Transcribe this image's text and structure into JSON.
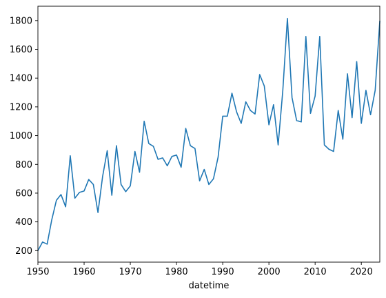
{
  "chart_data": {
    "type": "line",
    "title": "",
    "xlabel": "datetime",
    "ylabel": "",
    "xlim": [
      1950,
      2024
    ],
    "ylim": [
      120,
      1900
    ],
    "xticks": [
      1950,
      1960,
      1970,
      1980,
      1990,
      2000,
      2010,
      2020
    ],
    "yticks": [
      200,
      400,
      600,
      800,
      1000,
      1200,
      1400,
      1600,
      1800
    ],
    "grid": false,
    "legend": "none",
    "series": [
      {
        "color": "#1f77b4",
        "x": [
          1950,
          1951,
          1952,
          1953,
          1954,
          1955,
          1956,
          1957,
          1958,
          1959,
          1960,
          1961,
          1962,
          1963,
          1964,
          1965,
          1966,
          1967,
          1968,
          1969,
          1970,
          1971,
          1972,
          1973,
          1974,
          1975,
          1976,
          1977,
          1978,
          1979,
          1980,
          1981,
          1982,
          1983,
          1984,
          1985,
          1986,
          1987,
          1988,
          1989,
          1990,
          1991,
          1992,
          1993,
          1994,
          1995,
          1996,
          1997,
          1998,
          1999,
          2000,
          2001,
          2002,
          2003,
          2004,
          2005,
          2006,
          2007,
          2008,
          2009,
          2010,
          2011,
          2012,
          2013,
          2014,
          2015,
          2016,
          2017,
          2018,
          2019,
          2020,
          2021,
          2022,
          2023,
          2024
        ],
        "values": [
          200,
          260,
          245,
          415,
          550,
          590,
          505,
          860,
          565,
          605,
          615,
          695,
          660,
          465,
          715,
          895,
          585,
          930,
          660,
          610,
          650,
          890,
          745,
          1100,
          945,
          925,
          835,
          845,
          790,
          855,
          865,
          780,
          1050,
          930,
          910,
          685,
          765,
          660,
          700,
          850,
          1135,
          1135,
          1295,
          1165,
          1085,
          1235,
          1175,
          1150,
          1425,
          1345,
          1075,
          1215,
          935,
          1310,
          1815,
          1265,
          1105,
          1095,
          1690,
          1155,
          1275,
          1690,
          935,
          905,
          890,
          1175,
          975,
          1430,
          1125,
          1515,
          1085,
          1315,
          1145,
          1315,
          1795
        ]
      }
    ]
  }
}
